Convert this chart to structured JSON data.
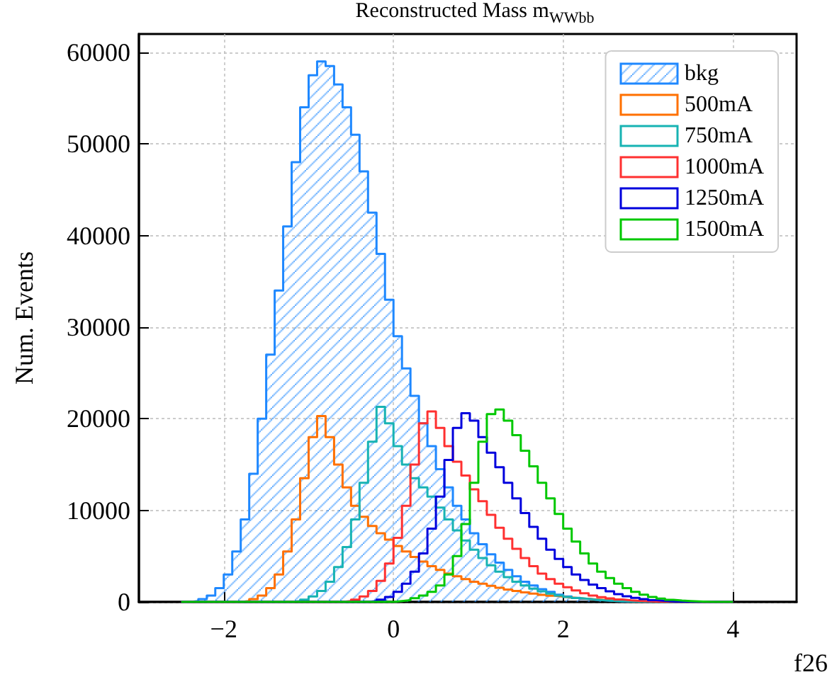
{
  "chart_data": {
    "type": "histogram",
    "title": "Reconstructed Mass m$_{WWbb}$",
    "xlabel": "f26",
    "ylabel": "Num. Events",
    "bins": [
      -2.5,
      -2.4,
      -2.3,
      -2.2,
      -2.1,
      -2.0,
      -1.9,
      -1.8,
      -1.7,
      -1.6,
      -1.5,
      -1.4,
      -1.3,
      -1.2,
      -1.1,
      -1.0,
      -0.9,
      -0.8,
      -0.7,
      -0.6,
      -0.5,
      -0.4,
      -0.3,
      -0.2,
      -0.1,
      0.0,
      0.1,
      0.2,
      0.3,
      0.4,
      0.5,
      0.6,
      0.7,
      0.8,
      0.9,
      1.0,
      1.1,
      1.2,
      1.3,
      1.4,
      1.5,
      1.6,
      1.7,
      1.8,
      1.9,
      2.0,
      2.1,
      2.2,
      2.3,
      2.4,
      2.5,
      2.6,
      2.7,
      2.8,
      2.9,
      3.0,
      3.1,
      3.2,
      3.3,
      3.4,
      3.5,
      3.6,
      3.7,
      3.8,
      3.9,
      4.0
    ],
    "series": [
      {
        "name": "bkg",
        "color": "#1e88ff",
        "values": [
          0,
          100,
          300,
          700,
          1500,
          3000,
          5500,
          9000,
          14000,
          20000,
          27000,
          34000,
          41000,
          48000,
          54000,
          57500,
          59000,
          58500,
          56500,
          54000,
          51000,
          47000,
          42500,
          38000,
          33000,
          29000,
          25500,
          22500,
          19500,
          17000,
          14500,
          12500,
          10500,
          9000,
          7500,
          6300,
          5200,
          4300,
          3500,
          2800,
          2200,
          1800,
          1400,
          1100,
          800,
          600,
          450,
          330,
          240,
          170,
          120,
          80,
          50,
          30,
          20,
          10,
          0,
          0,
          0,
          0,
          0,
          0,
          0,
          0,
          0
        ]
      },
      {
        "name": "500mA",
        "color": "#ff7000",
        "values": [
          0,
          0,
          0,
          0,
          0,
          0,
          0,
          100,
          300,
          700,
          1500,
          3000,
          5500,
          9000,
          13500,
          18000,
          20300,
          18000,
          15000,
          12500,
          10500,
          9300,
          8300,
          7500,
          6800,
          6100,
          5500,
          4900,
          4400,
          3900,
          3500,
          3100,
          2800,
          2500,
          2200,
          2000,
          1750,
          1550,
          1350,
          1200,
          1050,
          900,
          780,
          670,
          570,
          480,
          400,
          330,
          270,
          220,
          180,
          140,
          110,
          80,
          60,
          40,
          25,
          15,
          10,
          0,
          0,
          0,
          0,
          0,
          0
        ]
      },
      {
        "name": "750mA",
        "color": "#17b3b3",
        "values": [
          0,
          0,
          0,
          0,
          0,
          0,
          0,
          0,
          0,
          0,
          0,
          0,
          0,
          100,
          250,
          600,
          1200,
          2200,
          3800,
          6000,
          9000,
          13000,
          17500,
          21300,
          19500,
          17000,
          15000,
          13500,
          12500,
          11500,
          10300,
          9000,
          7800,
          6700,
          5700,
          4800,
          4000,
          3300,
          2700,
          2200,
          1800,
          1450,
          1150,
          900,
          700,
          550,
          420,
          320,
          240,
          170,
          120,
          80,
          50,
          30,
          15,
          5,
          0,
          0,
          0,
          0,
          0,
          0,
          0,
          0,
          0
        ]
      },
      {
        "name": "1000mA",
        "color": "#ff3030",
        "values": [
          0,
          0,
          0,
          0,
          0,
          0,
          0,
          0,
          0,
          0,
          0,
          0,
          0,
          0,
          0,
          0,
          0,
          0,
          0,
          100,
          250,
          600,
          1200,
          2300,
          4200,
          7000,
          10500,
          15000,
          19500,
          20800,
          19000,
          17000,
          15300,
          13800,
          12300,
          11000,
          9500,
          8100,
          6900,
          5800,
          4800,
          3900,
          3100,
          2500,
          2000,
          1600,
          1250,
          950,
          700,
          520,
          380,
          270,
          180,
          120,
          70,
          40,
          20,
          10,
          0,
          0,
          0,
          0,
          0,
          0,
          0
        ]
      },
      {
        "name": "1250mA",
        "color": "#0000dd",
        "values": [
          0,
          0,
          0,
          0,
          0,
          0,
          0,
          0,
          0,
          0,
          0,
          0,
          0,
          0,
          0,
          0,
          0,
          0,
          0,
          0,
          0,
          0,
          100,
          250,
          550,
          1100,
          2000,
          3300,
          5300,
          8000,
          11500,
          15500,
          19000,
          20600,
          19800,
          18000,
          16300,
          14700,
          13000,
          11300,
          9700,
          8200,
          6900,
          5700,
          4700,
          3800,
          3000,
          2400,
          1900,
          1500,
          1150,
          850,
          620,
          440,
          300,
          190,
          110,
          60,
          30,
          10,
          0,
          0,
          0,
          0,
          0
        ]
      },
      {
        "name": "1500mA",
        "color": "#00c800",
        "values": [
          0,
          0,
          0,
          0,
          0,
          0,
          0,
          0,
          0,
          0,
          0,
          0,
          0,
          0,
          0,
          0,
          0,
          0,
          0,
          0,
          0,
          0,
          0,
          0,
          0,
          100,
          200,
          400,
          700,
          1100,
          1800,
          3000,
          5000,
          8500,
          13000,
          17500,
          20500,
          21000,
          19800,
          18200,
          16500,
          14800,
          13000,
          11300,
          9600,
          8000,
          6600,
          5300,
          4200,
          3300,
          2600,
          2000,
          1500,
          1100,
          800,
          550,
          370,
          240,
          150,
          90,
          50,
          20,
          5,
          0,
          0
        ]
      }
    ],
    "xlim": [
      -3,
      4.75
    ],
    "ylim": [
      0,
      62000
    ],
    "xticks": [
      -2,
      0,
      2,
      4
    ],
    "yticks": [
      0,
      10000,
      20000,
      30000,
      40000,
      50000,
      60000
    ],
    "grid": true,
    "legend": "top right"
  }
}
